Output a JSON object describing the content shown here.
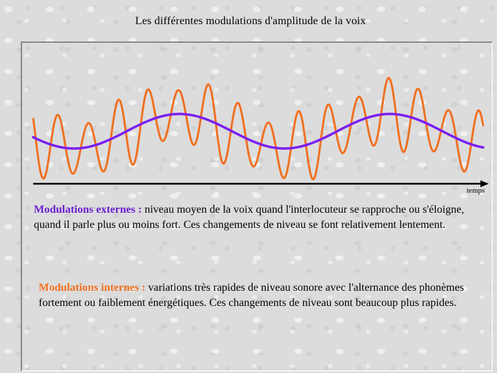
{
  "title": "Les différentes modulations d'amplitude de la voix",
  "axis": {
    "label": "temps"
  },
  "colors": {
    "slow_wave": "#7a1ff0",
    "fast_wave": "#f07020",
    "axis": "#000000"
  },
  "external": {
    "term": "Modulations externes :",
    "text": " niveau moyen de la voix quand l'interlocuteur se rapproche ou s'éloigne, quand il parle plus ou moins fort. Ces changements de niveau se font relativement lentement."
  },
  "internal": {
    "term": "Modulations internes :",
    "text": " variations très rapides de niveau sonore avec l'alternance des phonèmes fortement ou faiblement énergétiques. Ces changements de niveau sont beaucoup plus rapides."
  }
}
